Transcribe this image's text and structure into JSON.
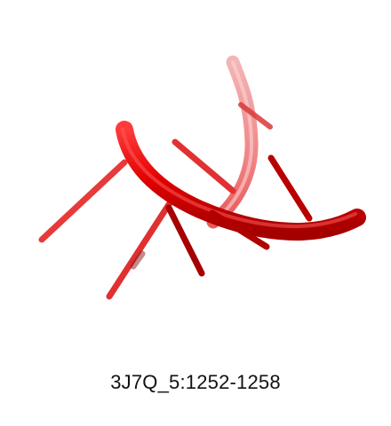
{
  "structure": {
    "caption": "3J7Q_5:1252-1258",
    "color": "#e00000",
    "style": "cartoon-backbone-with-base-sticks"
  }
}
